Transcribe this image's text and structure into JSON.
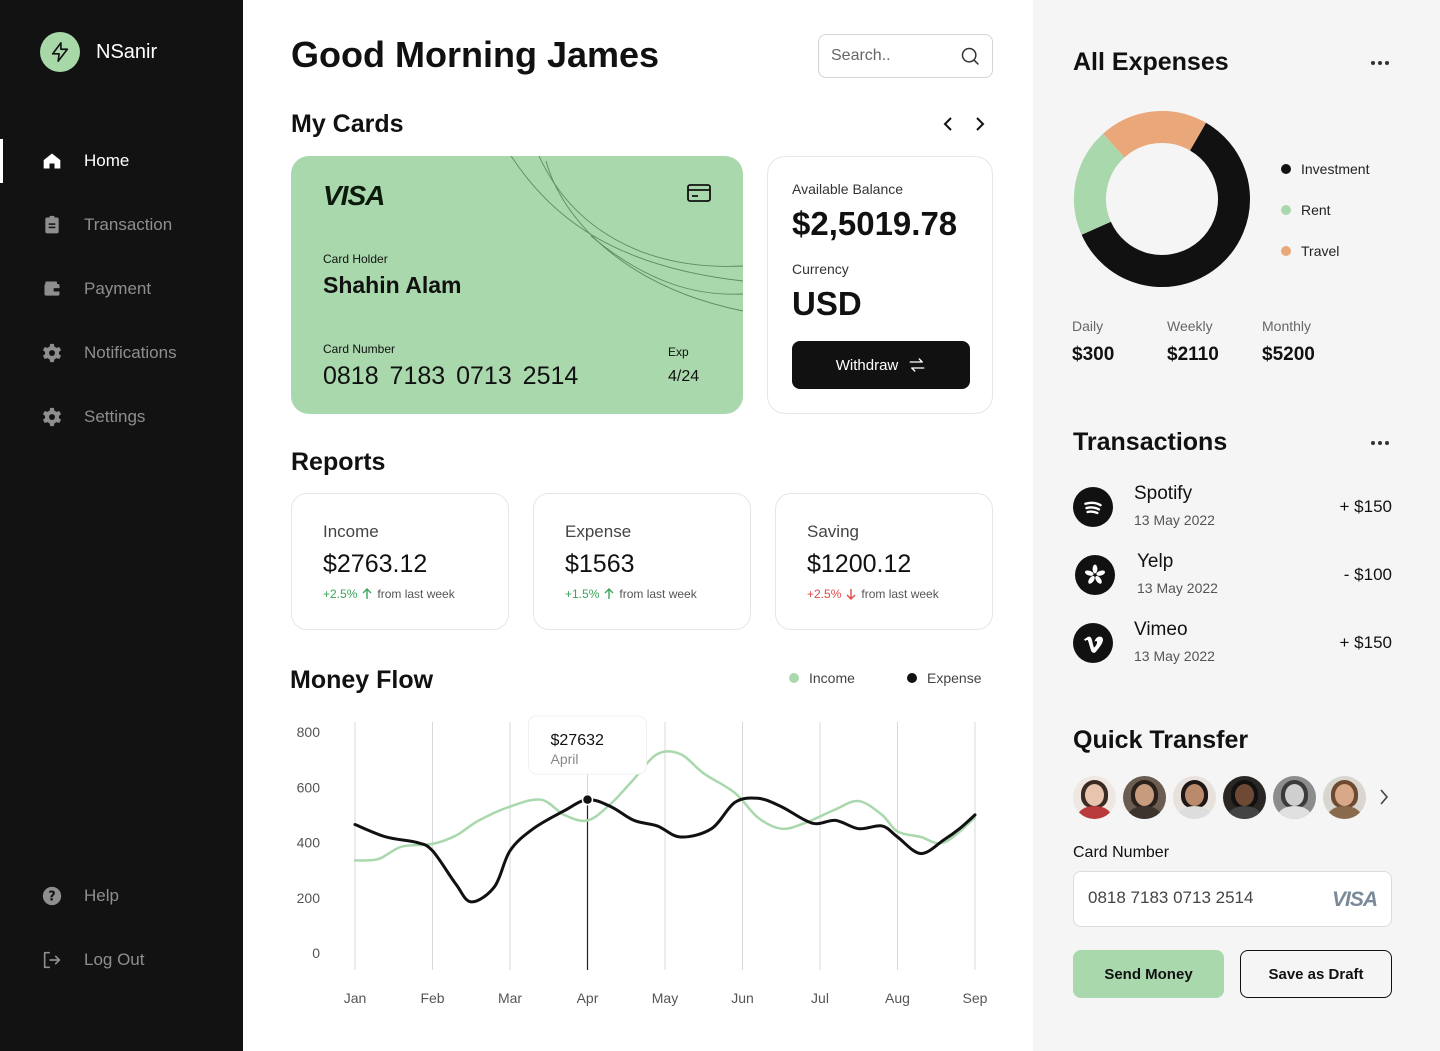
{
  "brand": {
    "name": "NSanir",
    "logo_icon": "lightning-icon"
  },
  "sidebar": {
    "items": [
      {
        "label": "Home",
        "icon": "home-icon",
        "active": true
      },
      {
        "label": "Transaction",
        "icon": "clipboard-icon"
      },
      {
        "label": "Payment",
        "icon": "wallet-icon"
      },
      {
        "label": "Notifications",
        "icon": "gear-icon"
      },
      {
        "label": "Settings",
        "icon": "gear-icon"
      }
    ],
    "bottom": [
      {
        "label": "Help",
        "icon": "help-icon"
      },
      {
        "label": "Log Out",
        "icon": "logout-icon"
      }
    ]
  },
  "header": {
    "greeting": "Good Morning James",
    "search_placeholder": "Search.."
  },
  "cards": {
    "title": "My Cards",
    "card": {
      "brand": "VISA",
      "holder_label": "Card Holder",
      "holder": "Shahin Alam",
      "number_label": "Card Number",
      "number": "0818  7183  0713  2514",
      "exp_label": "Exp",
      "exp": "4/24",
      "color": "#a9d8ac"
    },
    "balance": {
      "label": "Available Balance",
      "value": "$2,5019.78",
      "currency_label": "Currency",
      "currency": "USD",
      "withdraw_label": "Withdraw"
    }
  },
  "reports": {
    "title": "Reports",
    "items": [
      {
        "label": "Income",
        "value": "$2763.12",
        "change": "+2.5%",
        "direction": "up",
        "suffix": "from last week"
      },
      {
        "label": "Expense",
        "value": "$1563",
        "change": "+1.5%",
        "direction": "up",
        "suffix": "from last week"
      },
      {
        "label": "Saving",
        "value": "$1200.12",
        "change": "+2.5%",
        "direction": "down",
        "suffix": "from last week"
      }
    ]
  },
  "money_flow": {
    "title": "Money Flow",
    "legend": {
      "income": "Income",
      "expense": "Expense"
    },
    "tooltip": {
      "value": "$27632",
      "label": "April"
    }
  },
  "chart_data": {
    "type": "line",
    "categories": [
      "Jan",
      "Feb",
      "Mar",
      "Apr",
      "May",
      "Jun",
      "Jul",
      "Aug",
      "Sep"
    ],
    "y_ticks": [
      800,
      600,
      400,
      200,
      0
    ],
    "ylim": [
      0,
      800
    ],
    "grid": "vertical",
    "legend_position": "top-right",
    "series": [
      {
        "name": "Income",
        "color": "#a9d8ac",
        "points": [
          [
            0,
            335
          ],
          [
            0.3,
            340
          ],
          [
            0.6,
            385
          ],
          [
            1,
            395
          ],
          [
            1.3,
            425
          ],
          [
            1.6,
            480
          ],
          [
            2,
            530
          ],
          [
            2.4,
            555
          ],
          [
            2.7,
            500
          ],
          [
            3,
            480
          ],
          [
            3.3,
            540
          ],
          [
            3.6,
            630
          ],
          [
            3.9,
            720
          ],
          [
            4.2,
            720
          ],
          [
            4.5,
            650
          ],
          [
            4.9,
            580
          ],
          [
            5.2,
            490
          ],
          [
            5.5,
            450
          ],
          [
            5.8,
            470
          ],
          [
            6.2,
            520
          ],
          [
            6.5,
            550
          ],
          [
            6.8,
            500
          ],
          [
            7,
            440
          ],
          [
            7.3,
            420
          ],
          [
            7.6,
            400
          ],
          [
            8,
            490
          ]
        ]
      },
      {
        "name": "Expense",
        "color": "#111111",
        "points": [
          [
            0,
            465
          ],
          [
            0.4,
            420
          ],
          [
            0.8,
            400
          ],
          [
            1,
            370
          ],
          [
            1.3,
            250
          ],
          [
            1.5,
            185
          ],
          [
            1.8,
            240
          ],
          [
            2,
            370
          ],
          [
            2.3,
            450
          ],
          [
            2.7,
            515
          ],
          [
            3,
            555
          ],
          [
            3.3,
            530
          ],
          [
            3.6,
            480
          ],
          [
            3.9,
            460
          ],
          [
            4.2,
            420
          ],
          [
            4.6,
            450
          ],
          [
            4.9,
            545
          ],
          [
            5.2,
            560
          ],
          [
            5.5,
            530
          ],
          [
            5.9,
            470
          ],
          [
            6.2,
            480
          ],
          [
            6.5,
            450
          ],
          [
            6.8,
            460
          ],
          [
            7,
            420
          ],
          [
            7.3,
            360
          ],
          [
            7.6,
            410
          ],
          [
            7.8,
            450
          ],
          [
            8,
            500
          ]
        ]
      }
    ],
    "highlight": {
      "x": "Apr",
      "value": 555
    }
  },
  "expenses": {
    "title": "All Expenses",
    "donut": [
      {
        "label": "Investment",
        "value": 60,
        "color": "#111111"
      },
      {
        "label": "Rent",
        "value": 20,
        "color": "#a9d8ac"
      },
      {
        "label": "Travel",
        "value": 20,
        "color": "#eaa77a"
      }
    ],
    "periods": [
      {
        "label": "Daily",
        "value": "$300"
      },
      {
        "label": "Weekly",
        "value": "$2110"
      },
      {
        "label": "Monthly",
        "value": "$5200"
      }
    ]
  },
  "transactions": {
    "title": "Transactions",
    "items": [
      {
        "name": "Spotify",
        "date": "13 May 2022",
        "amount": "+ $150",
        "icon": "spotify-icon"
      },
      {
        "name": "Yelp",
        "date": "13 May 2022",
        "amount": "- $100",
        "icon": "yelp-icon"
      },
      {
        "name": "Vimeo",
        "date": "13 May 2022",
        "amount": "+ $150",
        "icon": "vimeo-icon"
      }
    ]
  },
  "quick_transfer": {
    "title": "Quick Transfer",
    "card_number_label": "Card Number",
    "card_number": "0818 7183 0713 2514",
    "card_brand": "VISA",
    "send_label": "Send Money",
    "draft_label": "Save as Draft"
  }
}
